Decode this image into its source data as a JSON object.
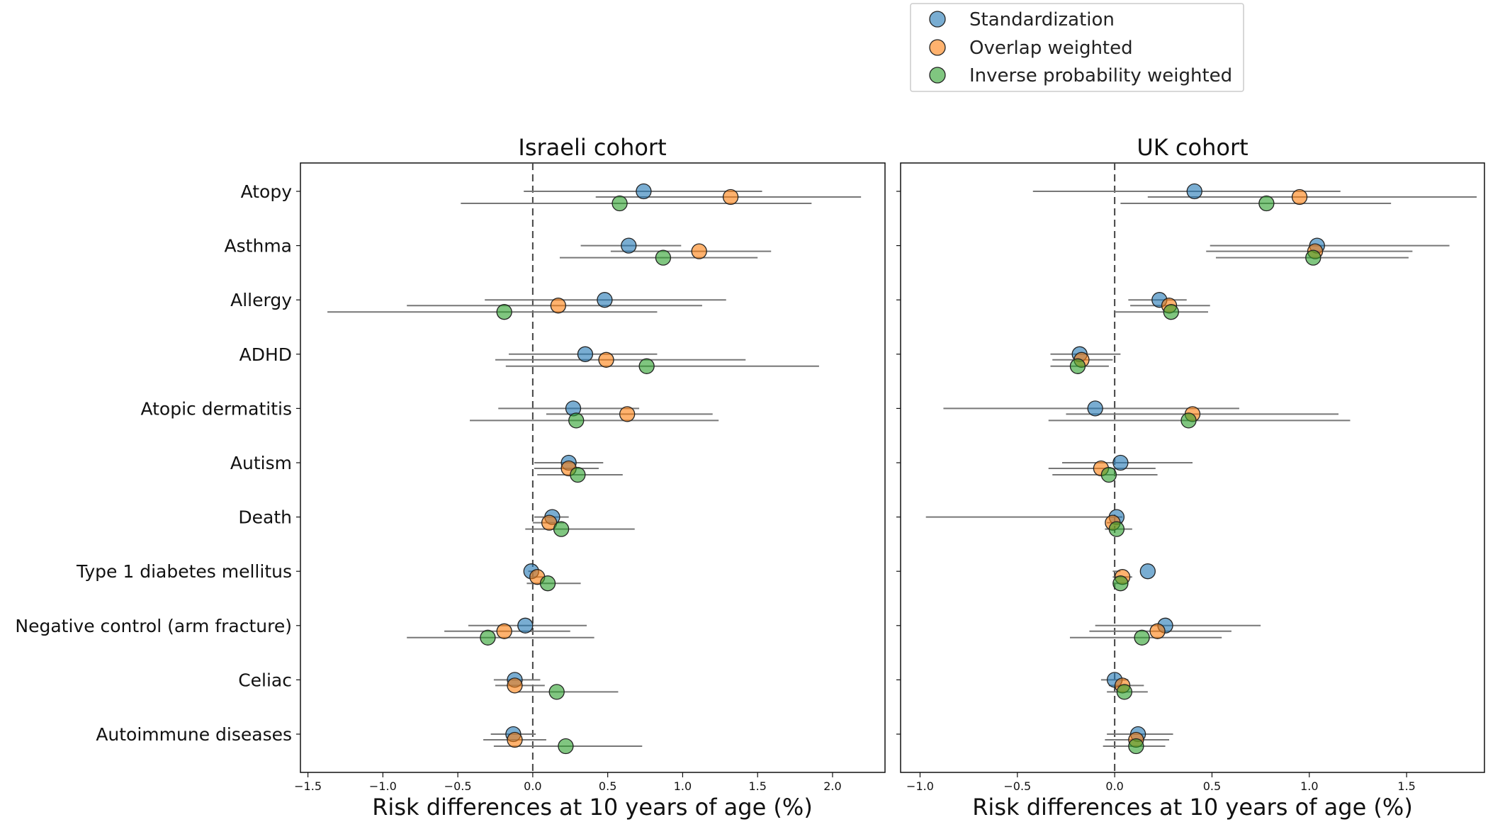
{
  "chart_data": {
    "type": "scatter",
    "style": "forest-plot",
    "xlabel": "Risk differences at 10 years of age (%)",
    "categories": [
      "Atopy",
      "Asthma",
      "Allergy",
      "ADHD",
      "Atopic dermatitis",
      "Autism",
      "Death",
      "Type 1 diabetes mellitus",
      "Negative control (arm fracture)",
      "Celiac",
      "Autoimmune diseases"
    ],
    "legend": {
      "placement": "top-right",
      "entries": [
        {
          "name": "Standardization",
          "color": "#1f77b4"
        },
        {
          "name": "Overlap weighted",
          "color": "#ff7f0e"
        },
        {
          "name": "Inverse probability weighted",
          "color": "#2ca02c"
        }
      ]
    },
    "reference_line": 0,
    "panels": [
      {
        "title": "Israeli cohort",
        "xlim": [
          -1.55,
          2.35
        ],
        "xticks": [
          -1.5,
          -1.0,
          -0.5,
          0.0,
          0.5,
          1.0,
          1.5,
          2.0
        ],
        "xtick_labels": [
          "−1.5",
          "−1.0",
          "−0.5",
          "0.0",
          "0.5",
          "1.0",
          "1.5",
          "2.0"
        ],
        "series": [
          {
            "name": "Standardization",
            "values": [
              0.74,
              0.64,
              0.48,
              0.35,
              0.27,
              0.24,
              0.13,
              -0.01,
              -0.05,
              -0.12,
              -0.13
            ],
            "ci_low": [
              -0.06,
              0.32,
              -0.32,
              -0.16,
              -0.23,
              0.01,
              0.01,
              -0.03,
              -0.43,
              -0.26,
              -0.28
            ],
            "ci_high": [
              1.53,
              0.99,
              1.29,
              0.83,
              0.71,
              0.47,
              0.24,
              0.02,
              0.36,
              0.05,
              0.02
            ]
          },
          {
            "name": "Overlap weighted",
            "values": [
              1.32,
              1.11,
              0.17,
              0.49,
              0.63,
              0.24,
              0.11,
              0.03,
              -0.19,
              -0.12,
              -0.12
            ],
            "ci_low": [
              0.42,
              0.52,
              -0.84,
              -0.25,
              0.09,
              0.01,
              0.0,
              -0.02,
              -0.59,
              -0.25,
              -0.33
            ],
            "ci_high": [
              2.19,
              1.59,
              1.13,
              1.42,
              1.2,
              0.44,
              0.21,
              0.08,
              0.25,
              0.08,
              0.09
            ]
          },
          {
            "name": "Inverse probability weighted",
            "values": [
              0.58,
              0.87,
              -0.19,
              0.76,
              0.29,
              0.3,
              0.19,
              0.1,
              -0.3,
              0.16,
              0.22
            ],
            "ci_low": [
              -0.48,
              0.18,
              -1.37,
              -0.18,
              -0.42,
              0.03,
              -0.05,
              -0.04,
              -0.84,
              -0.1,
              -0.26
            ],
            "ci_high": [
              1.86,
              1.5,
              0.83,
              1.91,
              1.24,
              0.6,
              0.68,
              0.32,
              0.41,
              0.57,
              0.73
            ]
          }
        ]
      },
      {
        "title": "UK cohort",
        "xlim": [
          -1.1,
          1.9
        ],
        "xticks": [
          -1.0,
          -0.5,
          0.0,
          0.5,
          1.0,
          1.5
        ],
        "xtick_labels": [
          "−1.0",
          "−0.5",
          "0.0",
          "0.5",
          "1.0",
          "1.5"
        ],
        "series": [
          {
            "name": "Standardization",
            "values": [
              0.41,
              1.04,
              0.23,
              -0.18,
              -0.1,
              0.03,
              0.01,
              0.17,
              0.26,
              0.0,
              0.12
            ],
            "ci_low": [
              -0.42,
              0.49,
              0.07,
              -0.33,
              -0.88,
              -0.27,
              -0.97,
              -0.01,
              -0.1,
              -0.07,
              -0.04
            ],
            "ci_high": [
              1.16,
              1.72,
              0.37,
              0.03,
              0.64,
              0.4,
              0.04,
              0.03,
              0.75,
              0.07,
              0.3
            ]
          },
          {
            "name": "Overlap weighted",
            "values": [
              0.95,
              1.03,
              0.28,
              -0.17,
              0.4,
              -0.07,
              -0.01,
              0.04,
              0.22,
              0.04,
              0.11
            ],
            "ci_low": [
              0.17,
              0.47,
              0.08,
              -0.32,
              -0.25,
              -0.34,
              -0.04,
              -0.01,
              -0.13,
              -0.03,
              -0.05
            ],
            "ci_high": [
              1.86,
              1.53,
              0.49,
              -0.01,
              1.15,
              0.21,
              0.04,
              0.09,
              0.6,
              0.15,
              0.28
            ]
          },
          {
            "name": "Inverse probability weighted",
            "values": [
              0.78,
              1.02,
              0.29,
              -0.19,
              0.38,
              -0.03,
              0.01,
              0.03,
              0.14,
              0.05,
              0.11
            ],
            "ci_low": [
              0.03,
              0.52,
              0.0,
              -0.33,
              -0.34,
              -0.32,
              -0.05,
              -0.01,
              -0.23,
              -0.04,
              -0.06
            ],
            "ci_high": [
              1.42,
              1.51,
              0.48,
              -0.03,
              1.21,
              0.22,
              0.09,
              0.07,
              0.55,
              0.17,
              0.26
            ]
          }
        ]
      }
    ]
  }
}
